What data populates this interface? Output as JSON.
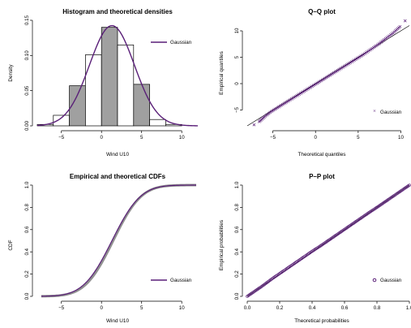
{
  "colors": {
    "theory": "#5a1f78",
    "hist_fill": "#a0a0a0",
    "ecdf": "#909090",
    "axis": "#000000"
  },
  "chart_data": [
    {
      "type": "bar",
      "title": "Histogram and theoretical densities",
      "xlabel": "Wind U10",
      "ylabel": "Density",
      "xlim": [
        -8,
        12
      ],
      "ylim": [
        0,
        0.15
      ],
      "xticks": [
        "−5",
        "0",
        "5",
        "10"
      ],
      "xtick_values": [
        -5,
        0,
        5,
        10
      ],
      "yticks": [
        "0.00",
        "0.05",
        "0.10",
        "0.15"
      ],
      "ytick_values": [
        0,
        0.05,
        0.1,
        0.15
      ],
      "bins": [
        {
          "x0": -8,
          "x1": -6,
          "value": 0.002,
          "shaded": false
        },
        {
          "x0": -6,
          "x1": -4,
          "value": 0.015,
          "shaded": false
        },
        {
          "x0": -4,
          "x1": -2,
          "value": 0.057,
          "shaded": true
        },
        {
          "x0": -2,
          "x1": 0,
          "value": 0.101,
          "shaded": false
        },
        {
          "x0": 0,
          "x1": 2,
          "value": 0.14,
          "shaded": true
        },
        {
          "x0": 2,
          "x1": 4,
          "value": 0.115,
          "shaded": false
        },
        {
          "x0": 4,
          "x1": 6,
          "value": 0.059,
          "shaded": true
        },
        {
          "x0": 6,
          "x1": 8,
          "value": 0.009,
          "shaded": false
        },
        {
          "x0": 8,
          "x1": 10,
          "value": 0.002,
          "shaded": false
        }
      ],
      "theoretical": {
        "name": "Gaussian",
        "mean": 1.3,
        "sd": 2.8,
        "x_range": [
          -8,
          12
        ]
      },
      "legend": [
        "Gaussian"
      ],
      "legend_position": "top-right",
      "grid": false
    },
    {
      "type": "scatter",
      "title": "Q–Q plot",
      "xlabel": "Theoretical quantiles",
      "ylabel": "Empirical quantiles",
      "xlim": [
        -8,
        11
      ],
      "ylim": [
        -8,
        12
      ],
      "xticks": [
        "−5",
        "0",
        "5",
        "10"
      ],
      "xtick_values": [
        -5,
        0,
        5,
        10
      ],
      "yticks": [
        "−5",
        "0",
        "5",
        "10"
      ],
      "ytick_values": [
        -5,
        0,
        5,
        10
      ],
      "points_x": [
        -7.2,
        -6.6,
        -6.0,
        -5.2,
        -4.3,
        -3.4,
        -2.5,
        -1.6,
        -0.7,
        0.2,
        1.1,
        2.0,
        2.9,
        3.8,
        4.7,
        5.6,
        6.5,
        7.4,
        8.2,
        9.1,
        9.9,
        10.5
      ],
      "points_y": [
        -7.8,
        -7.2,
        -6.3,
        -5.3,
        -4.4,
        -3.5,
        -2.6,
        -1.7,
        -0.8,
        0.1,
        1.0,
        1.9,
        2.8,
        3.7,
        4.6,
        5.5,
        6.5,
        7.5,
        8.5,
        9.6,
        10.8,
        11.9
      ],
      "reference_line": [
        [
          -8,
          -8
        ],
        [
          11,
          11
        ]
      ],
      "legend": [
        "Gaussian"
      ],
      "legend_position": "bottom-right",
      "grid": false
    },
    {
      "type": "line",
      "title": "Empirical and theoretical CDFs",
      "xlabel": "Wind U10",
      "ylabel": "CDF",
      "xlim": [
        -8,
        12
      ],
      "ylim": [
        0,
        1
      ],
      "xticks": [
        "−5",
        "0",
        "5",
        "10"
      ],
      "xtick_values": [
        -5,
        0,
        5,
        10
      ],
      "yticks": [
        "0.0",
        "0.2",
        "0.4",
        "0.6",
        "0.8",
        "1.0"
      ],
      "ytick_values": [
        0,
        0.2,
        0.4,
        0.6,
        0.8,
        1.0
      ],
      "theoretical": {
        "name": "Gaussian",
        "mean": 1.3,
        "sd": 2.8,
        "x_range": [
          -7.5,
          11.8
        ]
      },
      "empirical_range": [
        -7.5,
        11.8
      ],
      "legend": [
        "Gaussian"
      ],
      "legend_position": "bottom-right",
      "grid": false
    },
    {
      "type": "scatter",
      "title": "P–P plot",
      "xlabel": "Theoretical probabilities",
      "ylabel": "Empirical probabilities",
      "xlim": [
        0,
        1
      ],
      "ylim": [
        0,
        1
      ],
      "xticks": [
        "0.0",
        "0.2",
        "0.4",
        "0.6",
        "0.8",
        "1.0"
      ],
      "xtick_values": [
        0,
        0.2,
        0.4,
        0.6,
        0.8,
        1.0
      ],
      "yticks": [
        "0.0",
        "0.2",
        "0.4",
        "0.6",
        "0.8",
        "1.0"
      ],
      "ytick_values": [
        0,
        0.2,
        0.4,
        0.6,
        0.8,
        1.0
      ],
      "points_x": [
        0.0,
        0.05,
        0.1,
        0.15,
        0.2,
        0.25,
        0.3,
        0.35,
        0.4,
        0.45,
        0.5,
        0.55,
        0.6,
        0.65,
        0.7,
        0.75,
        0.8,
        0.85,
        0.9,
        0.95,
        1.0
      ],
      "points_y": [
        0.0,
        0.05,
        0.1,
        0.155,
        0.205,
        0.255,
        0.305,
        0.355,
        0.405,
        0.452,
        0.502,
        0.552,
        0.602,
        0.652,
        0.702,
        0.752,
        0.8,
        0.85,
        0.9,
        0.95,
        1.0
      ],
      "reference_line": [
        [
          0,
          0
        ],
        [
          1,
          1
        ]
      ],
      "legend": [
        "Gaussian"
      ],
      "legend_position": "bottom-right",
      "grid": false
    }
  ]
}
